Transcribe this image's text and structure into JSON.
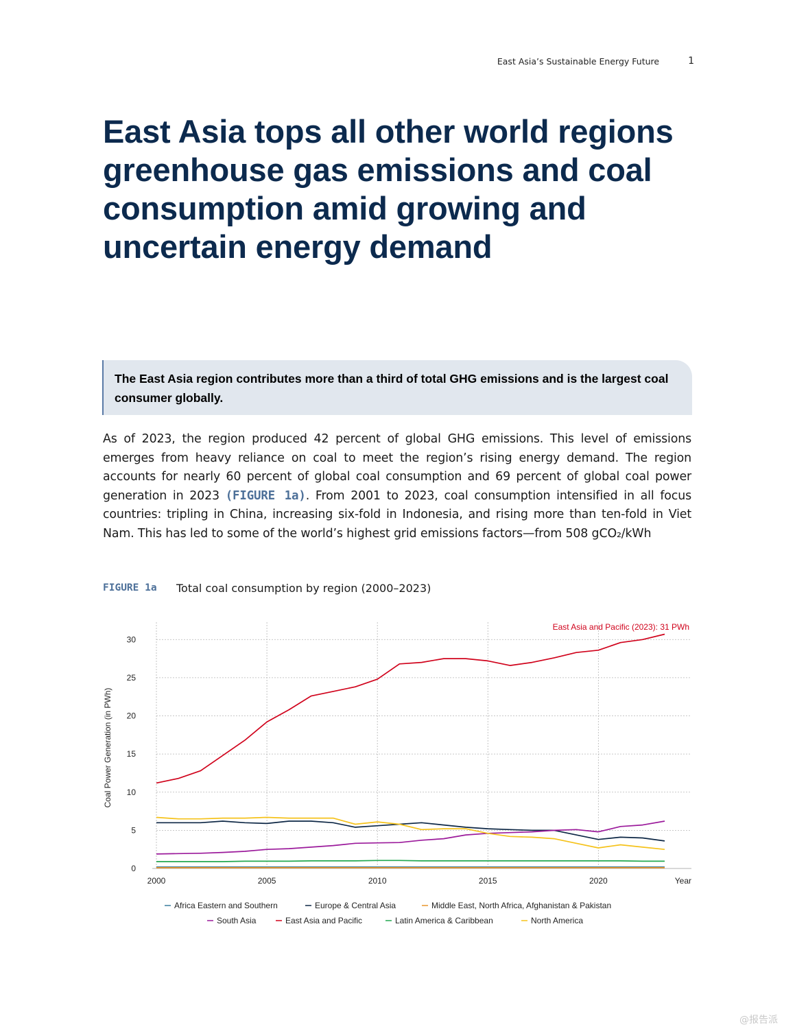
{
  "header": {
    "running_title": "East Asia’s Sustainable Energy Future",
    "page_number": "1"
  },
  "title": "East Asia tops all other world regions greenhouse gas emissions and coal consumption amid growing and uncertain energy demand",
  "callout": "The East Asia region contributes more than a third of total GHG emissions and is the largest coal consumer globally.",
  "body": {
    "before_ref": "As of 2023, the region produced 42 percent of global GHG emissions. This level of emissions emerges from heavy reliance on coal to meet the region’s rising energy demand. The region accounts for nearly 60 percent of global coal consumption and 69 percent of global coal power generation in 2023 ",
    "figure_ref": "(FIGURE 1a)",
    "after_ref": ". From 2001 to 2023, coal consumption intensified in all focus countries: tripling in China, increasing six-fold in Indonesia, and rising more than ten-fold in Viet Nam. This has led to some of the world’s highest grid emissions factors—from 508 gCO₂/kWh"
  },
  "figure": {
    "label": "FIGURE 1a",
    "title": "Total coal consumption by region (2000–2023)"
  },
  "watermark": "@报告派",
  "chart_data": {
    "type": "line",
    "title": "",
    "xlabel": "Year",
    "ylabel": "Coal Power Generation (in PWh)",
    "xlim": [
      2000,
      2023
    ],
    "ylim": [
      0,
      32
    ],
    "xticks": [
      2000,
      2005,
      2010,
      2015,
      2020
    ],
    "yticks": [
      0,
      5,
      10,
      15,
      20,
      25,
      30
    ],
    "grid": true,
    "legend_position": "bottom",
    "annotation": "East Asia and Pacific (2023): 31 PWh",
    "annotation_color": "#d0021b",
    "x": [
      2000,
      2001,
      2002,
      2003,
      2004,
      2005,
      2006,
      2007,
      2008,
      2009,
      2010,
      2011,
      2012,
      2013,
      2014,
      2015,
      2016,
      2017,
      2018,
      2019,
      2020,
      2021,
      2022,
      2023
    ],
    "series": [
      {
        "name": "Africa Eastern and Southern",
        "color": "#3a7d9e",
        "values": [
          0.2,
          0.2,
          0.2,
          0.2,
          0.2,
          0.2,
          0.2,
          0.2,
          0.2,
          0.2,
          0.2,
          0.2,
          0.2,
          0.2,
          0.2,
          0.2,
          0.2,
          0.2,
          0.2,
          0.2,
          0.2,
          0.2,
          0.2,
          0.2
        ]
      },
      {
        "name": "Europe & Central Asia",
        "color": "#0d2745",
        "values": [
          6.0,
          6.0,
          6.0,
          6.2,
          6.0,
          5.9,
          6.2,
          6.2,
          6.0,
          5.4,
          5.6,
          5.8,
          6.0,
          5.7,
          5.4,
          5.2,
          5.1,
          5.0,
          5.0,
          4.4,
          3.8,
          4.1,
          4.0,
          3.6
        ]
      },
      {
        "name": "Middle East, North Africa, Afghanistan & Pakistan",
        "color": "#e8952b",
        "values": [
          0.1,
          0.1,
          0.1,
          0.1,
          0.1,
          0.1,
          0.1,
          0.1,
          0.1,
          0.1,
          0.1,
          0.1,
          0.1,
          0.1,
          0.1,
          0.1,
          0.1,
          0.1,
          0.1,
          0.1,
          0.1,
          0.1,
          0.1,
          0.1
        ]
      },
      {
        "name": "South Asia",
        "color": "#9b1a9b",
        "values": [
          1.9,
          1.95,
          2.0,
          2.1,
          2.25,
          2.5,
          2.6,
          2.8,
          3.0,
          3.3,
          3.35,
          3.4,
          3.7,
          3.9,
          4.4,
          4.6,
          4.7,
          4.8,
          5.0,
          5.1,
          4.8,
          5.5,
          5.7,
          6.2
        ]
      },
      {
        "name": "East Asia and Pacific",
        "color": "#d0021b",
        "values": [
          11.2,
          11.8,
          12.8,
          14.8,
          16.8,
          19.2,
          20.8,
          22.6,
          23.2,
          23.8,
          24.8,
          26.8,
          27.0,
          27.5,
          27.5,
          27.2,
          26.6,
          27.0,
          27.6,
          28.3,
          28.6,
          29.6,
          30.0,
          30.7
        ]
      },
      {
        "name": "Latin America & Caribbean",
        "color": "#22a851",
        "values": [
          0.9,
          0.9,
          0.9,
          0.9,
          0.95,
          0.95,
          0.95,
          1.0,
          1.0,
          1.0,
          1.05,
          1.05,
          1.0,
          1.0,
          1.0,
          1.0,
          1.0,
          1.0,
          1.0,
          1.0,
          1.0,
          1.0,
          0.95,
          0.95
        ]
      },
      {
        "name": "North America",
        "color": "#f5c21a",
        "values": [
          6.7,
          6.5,
          6.5,
          6.6,
          6.6,
          6.7,
          6.6,
          6.6,
          6.6,
          5.8,
          6.1,
          5.8,
          5.1,
          5.2,
          5.2,
          4.6,
          4.2,
          4.1,
          3.9,
          3.3,
          2.7,
          3.1,
          2.8,
          2.5
        ]
      }
    ]
  }
}
